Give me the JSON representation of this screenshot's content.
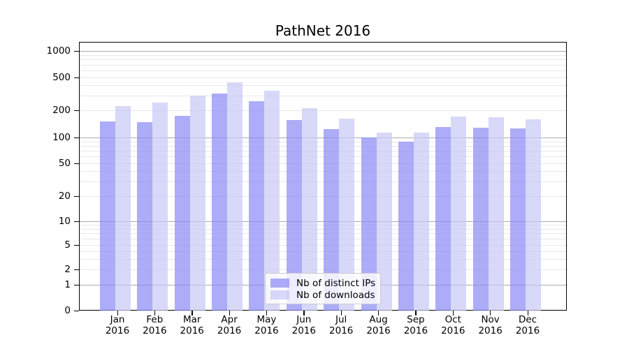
{
  "title": "PathNet 2016",
  "legend": {
    "items": [
      {
        "label": "Nb of distinct IPs"
      },
      {
        "label": "Nb of downloads"
      }
    ]
  },
  "chart_data": {
    "type": "bar",
    "title": "PathNet 2016",
    "categories": [
      "Jan 2016",
      "Feb 2016",
      "Mar 2016",
      "Apr 2016",
      "May 2016",
      "Jun 2016",
      "Jul 2016",
      "Aug 2016",
      "Sep 2016",
      "Oct 2016",
      "Nov 2016",
      "Dec 2016"
    ],
    "series": [
      {
        "name": "Nb of distinct IPs",
        "color": "#8989f5",
        "alpha": 0.7,
        "values": [
          150,
          148,
          173,
          320,
          258,
          156,
          124,
          100,
          90,
          130,
          128,
          126
        ]
      },
      {
        "name": "Nb of downloads",
        "color": "#c7c7f5",
        "alpha": 0.7,
        "values": [
          225,
          248,
          300,
          435,
          345,
          212,
          162,
          114,
          114,
          170,
          168,
          159
        ]
      }
    ],
    "yscale": "symlog",
    "yticks": [
      0,
      1,
      2,
      5,
      10,
      20,
      50,
      100,
      200,
      500,
      1000
    ],
    "ylim": [
      0,
      1200
    ],
    "grid": "both",
    "grid_major_color": "#ababab",
    "grid_minor_color": "#e8e8e8",
    "legend_position": "lower center",
    "xlabel": "",
    "ylabel": ""
  }
}
